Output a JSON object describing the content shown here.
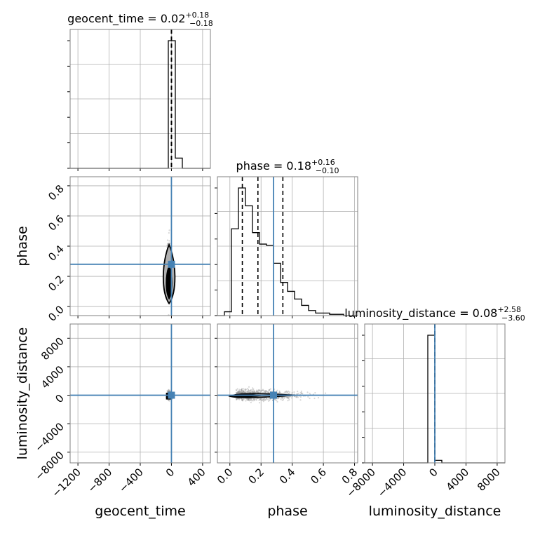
{
  "chart_data": {
    "type": "corner",
    "parameters": [
      "geocent_time",
      "phase",
      "luminosity_distance"
    ],
    "truth_color": "#4682b4",
    "truths": {
      "geocent_time": 0,
      "phase": 0.28,
      "luminosity_distance": 0
    },
    "ranges": {
      "geocent_time": [
        -1300,
        500
      ],
      "phase": [
        -0.08,
        0.82
      ],
      "luminosity_distance": [
        -9000,
        9000
      ],
      "phase_y": [
        -0.06,
        0.86
      ],
      "luminosity_distance_y": [
        -9500,
        10000
      ]
    },
    "ticks": {
      "geocent_time": [
        -1200,
        -800,
        -400,
        0,
        400
      ],
      "phase": [
        0.0,
        0.2,
        0.4,
        0.6,
        0.8
      ],
      "luminosity_distance": [
        -8000,
        -4000,
        0,
        4000,
        8000
      ],
      "luminosity_distance_y": [
        -8000,
        -4000,
        0,
        4000,
        8000
      ]
    },
    "tick_labels": {
      "geocent_time": [
        "−1200",
        "−800",
        "−400",
        "0",
        "400"
      ],
      "phase": [
        "0.0",
        "0.2",
        "0.4",
        "0.6",
        "0.8"
      ],
      "luminosity_distance": [
        "−8000",
        "−4000",
        "0",
        "4000",
        "8000"
      ],
      "luminosity_distance_y": [
        "−8000",
        "−4000",
        "0",
        "4000",
        "8000"
      ]
    },
    "titles": {
      "geocent_time": {
        "prefix": "geocent_time = 0.02",
        "plus": "+0.18",
        "minus": "−0.18"
      },
      "phase": {
        "prefix": "phase = 0.18",
        "plus": "+0.16",
        "minus": "−0.10"
      },
      "luminosity_distance": {
        "prefix": "luminosity_distance = 0.08",
        "plus": "+2.58",
        "minus": "−3.60"
      }
    },
    "histograms": {
      "geocent_time": {
        "edges": [
          -1300,
          -1210,
          -1120,
          -1030,
          -940,
          -850,
          -760,
          -670,
          -580,
          -490,
          -400,
          -310,
          -220,
          -130,
          -40,
          50,
          140,
          230,
          320,
          410,
          500
        ],
        "counts": [
          0,
          0,
          0,
          0,
          0,
          0,
          0,
          0,
          0,
          0,
          0,
          0,
          0,
          0,
          1.0,
          0.08,
          0,
          0,
          0,
          0
        ],
        "quantiles": [
          -0.16,
          0.02,
          0.2
        ]
      },
      "phase": {
        "edges": [
          -0.08,
          -0.035,
          0.01,
          0.055,
          0.1,
          0.145,
          0.19,
          0.235,
          0.28,
          0.325,
          0.37,
          0.415,
          0.46,
          0.505,
          0.55,
          0.595,
          0.64,
          0.685,
          0.73,
          0.775,
          0.82
        ],
        "counts": [
          0,
          0.03,
          0.68,
          1.0,
          0.86,
          0.65,
          0.56,
          0.55,
          0.41,
          0.26,
          0.19,
          0.13,
          0.08,
          0.04,
          0.02,
          0.02,
          0.01,
          0.01,
          0,
          0
        ],
        "quantiles": [
          0.08,
          0.18,
          0.34
        ]
      },
      "luminosity_distance": {
        "edges": [
          -9000,
          -8100,
          -7200,
          -6300,
          -5400,
          -4500,
          -3600,
          -2700,
          -1800,
          -900,
          0,
          900,
          1800,
          2700,
          3600,
          4500,
          5400,
          6300,
          7200,
          8100,
          9000
        ],
        "counts": [
          0,
          0,
          0,
          0,
          0,
          0,
          0,
          0,
          0,
          1.0,
          0.02,
          0,
          0,
          0,
          0,
          0,
          0,
          0,
          0,
          0
        ],
        "quantiles": [
          -3.52,
          0.08,
          2.66
        ]
      }
    }
  }
}
